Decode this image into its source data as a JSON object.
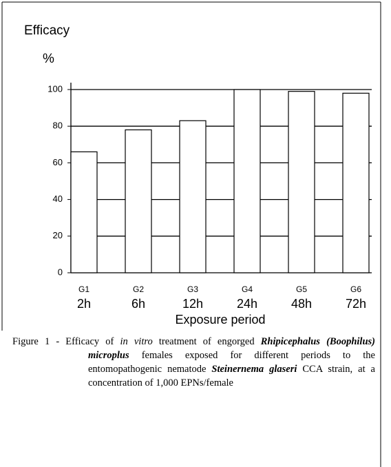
{
  "chart_data": {
    "type": "bar",
    "title": "Efficacy",
    "y_unit": "%",
    "xlabel": "Exposure period",
    "categories": [
      "G1",
      "G2",
      "G3",
      "G4",
      "G5",
      "G6"
    ],
    "sublabels": [
      "2h",
      "6h",
      "12h",
      "24h",
      "48h",
      "72h"
    ],
    "values": [
      66,
      78,
      83,
      100,
      99,
      98
    ],
    "color": "#ffffff",
    "ylim": [
      0,
      100
    ],
    "yticks": [
      0,
      20,
      40,
      60,
      80,
      100
    ],
    "grid": true
  },
  "caption": [
    {
      "text": "Figure 1 - Efficacy of "
    },
    {
      "text": "in vitro",
      "style": "italic"
    },
    {
      "text": " treatment of engorged "
    },
    {
      "text": "Rhipicephalus (Boophilus) microplus",
      "style": "bold-italic"
    },
    {
      "text": " females exposed for different periods to the entomopathogenic nematode "
    },
    {
      "text": "Steinernema glaseri",
      "style": "bold-italic"
    },
    {
      "text": " CCA strain, at a concentration of 1,000 EPNs/female"
    }
  ]
}
